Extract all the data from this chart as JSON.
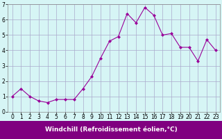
{
  "x": [
    0,
    1,
    2,
    3,
    4,
    5,
    6,
    7,
    8,
    9,
    10,
    11,
    12,
    13,
    14,
    15,
    16,
    17,
    18,
    19,
    20,
    21,
    22,
    23
  ],
  "y": [
    1.0,
    1.5,
    1.0,
    0.7,
    0.6,
    0.8,
    0.8,
    0.8,
    1.5,
    2.3,
    3.5,
    4.6,
    4.9,
    6.4,
    5.8,
    6.8,
    6.3,
    5.0,
    5.1,
    4.2,
    4.2,
    3.3,
    4.7,
    4.0
  ],
  "line_color": "#990099",
  "marker": "D",
  "marker_size": 2,
  "bg_color": "#d6f5f5",
  "grid_color": "#aaaacc",
  "xlim": [
    -0.5,
    23.5
  ],
  "ylim": [
    0,
    7
  ],
  "yticks": [
    0,
    1,
    2,
    3,
    4,
    5,
    6,
    7
  ],
  "xticks": [
    0,
    1,
    2,
    3,
    4,
    5,
    6,
    7,
    8,
    9,
    10,
    11,
    12,
    13,
    14,
    15,
    16,
    17,
    18,
    19,
    20,
    21,
    22,
    23
  ],
  "xlabel": "Windchill (Refroidissement éolien,°C)",
  "xlabel_fontsize": 6.5,
  "tick_fontsize": 5.5,
  "bottom_bar_color": "#800080",
  "xlabel_text_color": "#ffffff"
}
